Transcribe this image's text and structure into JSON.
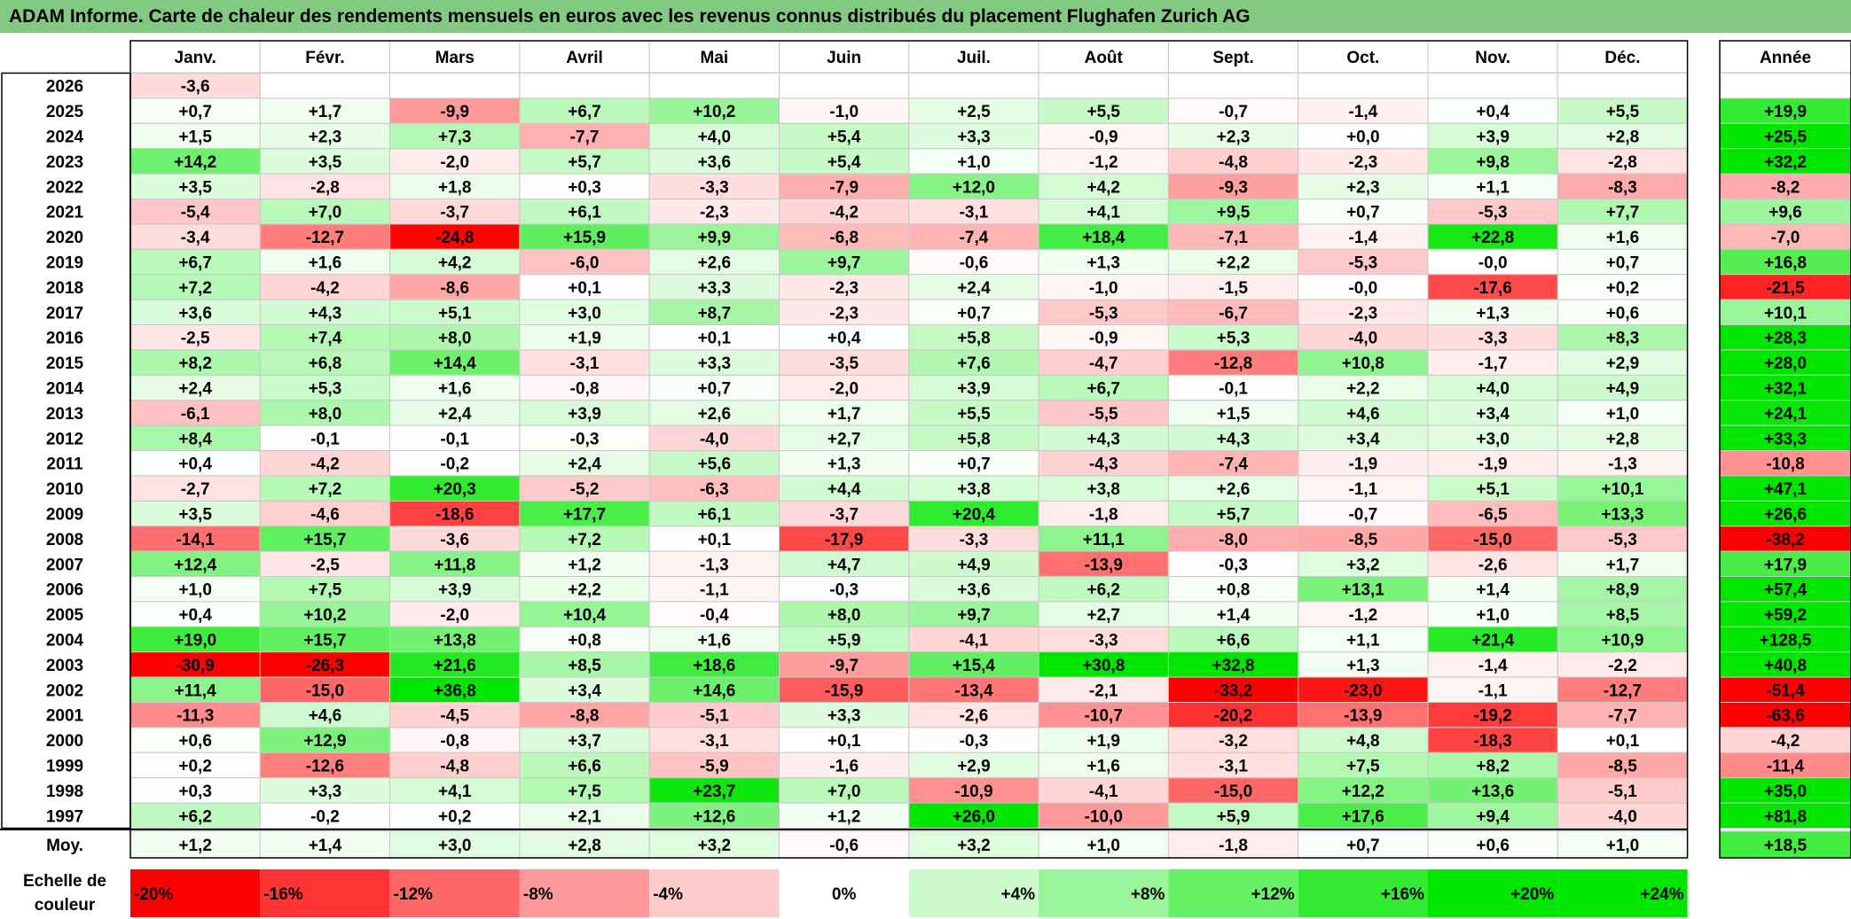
{
  "title": "ADAM Informe. Carte de chaleur des rendements mensuels en euros avec les revenus connus distribués du placement Flughafen Zurich AG",
  "colors": {
    "title_bg": "#82c982",
    "positive_max": "#00e600",
    "negative_max": "#ff0000",
    "neutral": "#ffffff"
  },
  "chart_data": {
    "type": "heatmap",
    "title": "ADAM Informe. Carte de chaleur des rendements mensuels en euros avec les revenus connus distribués du placement Flughafen Zurich AG",
    "columns": [
      "Janv.",
      "Févr.",
      "Mars",
      "Avril",
      "Mai",
      "Juin",
      "Juil.",
      "Août",
      "Sept.",
      "Oct.",
      "Nov.",
      "Déc."
    ],
    "annual_header": "Année",
    "rows": [
      {
        "year": "2026",
        "values": [
          "-3,6",
          "",
          "",
          "",
          "",
          "",
          "",
          "",
          "",
          "",
          "",
          ""
        ],
        "annual": ""
      },
      {
        "year": "2025",
        "values": [
          "+0,7",
          "+1,7",
          "-9,9",
          "+6,7",
          "+10,2",
          "-1,0",
          "+2,5",
          "+5,5",
          "-0,7",
          "-1,4",
          "+0,4",
          "+5,5"
        ],
        "annual": "+19,9"
      },
      {
        "year": "2024",
        "values": [
          "+1,5",
          "+2,3",
          "+7,3",
          "-7,7",
          "+4,0",
          "+5,4",
          "+3,3",
          "-0,9",
          "+2,3",
          "+0,0",
          "+3,9",
          "+2,8"
        ],
        "annual": "+25,5"
      },
      {
        "year": "2023",
        "values": [
          "+14,2",
          "+3,5",
          "-2,0",
          "+5,7",
          "+3,6",
          "+5,4",
          "+1,0",
          "-1,2",
          "-4,8",
          "-2,3",
          "+9,8",
          "-2,8"
        ],
        "annual": "+32,2"
      },
      {
        "year": "2022",
        "values": [
          "+3,5",
          "-2,8",
          "+1,8",
          "+0,3",
          "-3,3",
          "-7,9",
          "+12,0",
          "+4,2",
          "-9,3",
          "+2,3",
          "+1,1",
          "-8,3"
        ],
        "annual": "-8,2"
      },
      {
        "year": "2021",
        "values": [
          "-5,4",
          "+7,0",
          "-3,7",
          "+6,1",
          "-2,3",
          "-4,2",
          "-3,1",
          "+4,1",
          "+9,5",
          "+0,7",
          "-5,3",
          "+7,7"
        ],
        "annual": "+9,6"
      },
      {
        "year": "2020",
        "values": [
          "-3,4",
          "-12,7",
          "-24,8",
          "+15,9",
          "+9,9",
          "-6,8",
          "-7,4",
          "+18,4",
          "-7,1",
          "-1,4",
          "+22,8",
          "+1,6"
        ],
        "annual": "-7,0"
      },
      {
        "year": "2019",
        "values": [
          "+6,7",
          "+1,6",
          "+4,2",
          "-6,0",
          "+2,6",
          "+9,7",
          "-0,6",
          "+1,3",
          "+2,2",
          "-5,3",
          "-0,0",
          "+0,7"
        ],
        "annual": "+16,8"
      },
      {
        "year": "2018",
        "values": [
          "+7,2",
          "-4,2",
          "-8,6",
          "+0,1",
          "+3,3",
          "-2,3",
          "+2,4",
          "-1,0",
          "-1,5",
          "-0,0",
          "-17,6",
          "+0,2"
        ],
        "annual": "-21,5"
      },
      {
        "year": "2017",
        "values": [
          "+3,6",
          "+4,3",
          "+5,1",
          "+3,0",
          "+8,7",
          "-2,3",
          "+0,7",
          "-5,3",
          "-6,7",
          "-2,3",
          "+1,3",
          "+0,6"
        ],
        "annual": "+10,1"
      },
      {
        "year": "2016",
        "values": [
          "-2,5",
          "+7,4",
          "+8,0",
          "+1,9",
          "+0,1",
          "+0,4",
          "+5,8",
          "-0,9",
          "+5,3",
          "-4,0",
          "-3,3",
          "+8,3"
        ],
        "annual": "+28,3"
      },
      {
        "year": "2015",
        "values": [
          "+8,2",
          "+6,8",
          "+14,4",
          "-3,1",
          "+3,3",
          "-3,5",
          "+7,6",
          "-4,7",
          "-12,8",
          "+10,8",
          "-1,7",
          "+2,9"
        ],
        "annual": "+28,0"
      },
      {
        "year": "2014",
        "values": [
          "+2,4",
          "+5,3",
          "+1,6",
          "-0,8",
          "+0,7",
          "-2,0",
          "+3,9",
          "+6,7",
          "-0,1",
          "+2,2",
          "+4,0",
          "+4,9"
        ],
        "annual": "+32,1"
      },
      {
        "year": "2013",
        "values": [
          "-6,1",
          "+8,0",
          "+2,4",
          "+3,9",
          "+2,6",
          "+1,7",
          "+5,5",
          "-5,5",
          "+1,5",
          "+4,6",
          "+3,4",
          "+1,0"
        ],
        "annual": "+24,1"
      },
      {
        "year": "2012",
        "values": [
          "+8,4",
          "-0,1",
          "-0,1",
          "-0,3",
          "-4,0",
          "+2,7",
          "+5,8",
          "+4,3",
          "+4,3",
          "+3,4",
          "+3,0",
          "+2,8"
        ],
        "annual": "+33,3"
      },
      {
        "year": "2011",
        "values": [
          "+0,4",
          "-4,2",
          "-0,2",
          "+2,4",
          "+5,6",
          "+1,3",
          "+0,7",
          "-4,3",
          "-7,4",
          "-1,9",
          "-1,9",
          "-1,3"
        ],
        "annual": "-10,8"
      },
      {
        "year": "2010",
        "values": [
          "-2,7",
          "+7,2",
          "+20,3",
          "-5,2",
          "-6,3",
          "+4,4",
          "+3,8",
          "+3,8",
          "+2,6",
          "-1,1",
          "+5,1",
          "+10,1"
        ],
        "annual": "+47,1"
      },
      {
        "year": "2009",
        "values": [
          "+3,5",
          "-4,6",
          "-18,6",
          "+17,7",
          "+6,1",
          "-3,7",
          "+20,4",
          "-1,8",
          "+5,7",
          "-0,7",
          "-6,5",
          "+13,3"
        ],
        "annual": "+26,6"
      },
      {
        "year": "2008",
        "values": [
          "-14,1",
          "+15,7",
          "-3,6",
          "+7,2",
          "+0,1",
          "-17,9",
          "-3,3",
          "+11,1",
          "-8,0",
          "-8,5",
          "-15,0",
          "-5,3"
        ],
        "annual": "-38,2"
      },
      {
        "year": "2007",
        "values": [
          "+12,4",
          "-2,5",
          "+11,8",
          "+1,2",
          "-1,3",
          "+4,7",
          "+4,9",
          "-13,9",
          "-0,3",
          "+3,2",
          "-2,6",
          "+1,7"
        ],
        "annual": "+17,9"
      },
      {
        "year": "2006",
        "values": [
          "+1,0",
          "+7,5",
          "+3,9",
          "+2,2",
          "-1,1",
          "-0,3",
          "+3,6",
          "+6,2",
          "+0,8",
          "+13,1",
          "+1,4",
          "+8,9"
        ],
        "annual": "+57,4"
      },
      {
        "year": "2005",
        "values": [
          "+0,4",
          "+10,2",
          "-2,0",
          "+10,4",
          "-0,4",
          "+8,0",
          "+9,7",
          "+2,7",
          "+1,4",
          "-1,2",
          "+1,0",
          "+8,5"
        ],
        "annual": "+59,2"
      },
      {
        "year": "2004",
        "values": [
          "+19,0",
          "+15,7",
          "+13,8",
          "+0,8",
          "+1,6",
          "+5,9",
          "-4,1",
          "-3,3",
          "+6,6",
          "+1,1",
          "+21,4",
          "+10,9"
        ],
        "annual": "+128,5"
      },
      {
        "year": "2003",
        "values": [
          "-30,9",
          "-26,3",
          "+21,6",
          "+8,5",
          "+18,6",
          "-9,7",
          "+15,4",
          "+30,8",
          "+32,8",
          "+1,3",
          "-1,4",
          "-2,2"
        ],
        "annual": "+40,8"
      },
      {
        "year": "2002",
        "values": [
          "+11,4",
          "-15,0",
          "+36,8",
          "+3,4",
          "+14,6",
          "-15,9",
          "-13,4",
          "-2,1",
          "-33,2",
          "-23,0",
          "-1,1",
          "-12,7"
        ],
        "annual": "-51,4"
      },
      {
        "year": "2001",
        "values": [
          "-11,3",
          "+4,6",
          "-4,5",
          "-8,8",
          "-5,1",
          "+3,3",
          "-2,6",
          "-10,7",
          "-20,2",
          "-13,9",
          "-19,2",
          "-7,7"
        ],
        "annual": "-63,6"
      },
      {
        "year": "2000",
        "values": [
          "+0,6",
          "+12,9",
          "-0,8",
          "+3,7",
          "-3,1",
          "+0,1",
          "-0,3",
          "+1,9",
          "-3,2",
          "+4,8",
          "-18,3",
          "+0,1"
        ],
        "annual": "-4,2"
      },
      {
        "year": "1999",
        "values": [
          "+0,2",
          "-12,6",
          "-4,8",
          "+6,6",
          "-5,9",
          "-1,6",
          "+2,9",
          "+1,6",
          "-3,1",
          "+7,5",
          "+8,2",
          "-8,5"
        ],
        "annual": "-11,4"
      },
      {
        "year": "1998",
        "values": [
          "+0,3",
          "+3,3",
          "+4,1",
          "+7,5",
          "+23,7",
          "+7,0",
          "-10,9",
          "-4,1",
          "-15,0",
          "+12,2",
          "+13,6",
          "-5,1"
        ],
        "annual": "+35,0"
      },
      {
        "year": "1997",
        "values": [
          "+6,2",
          "-0,2",
          "+0,2",
          "+2,1",
          "+12,6",
          "+1,2",
          "+26,0",
          "-10,0",
          "+5,9",
          "+17,6",
          "+9,4",
          "-4,0"
        ],
        "annual": "+81,8"
      }
    ],
    "average": {
      "label": "Moy.",
      "values": [
        "+1,2",
        "+1,4",
        "+3,0",
        "+2,8",
        "+3,2",
        "-0,6",
        "+3,2",
        "+1,0",
        "-1,8",
        "+0,7",
        "+0,6",
        "+1,0"
      ],
      "annual": "+18,5"
    },
    "scale": {
      "label_line1": "Echelle de",
      "label_line2": "couleur",
      "steps": [
        "-20%",
        "-16%",
        "-12%",
        "-8%",
        "-4%",
        "0%",
        "+4%",
        "+8%",
        "+12%",
        "+16%",
        "+20%",
        "+24%"
      ]
    }
  }
}
